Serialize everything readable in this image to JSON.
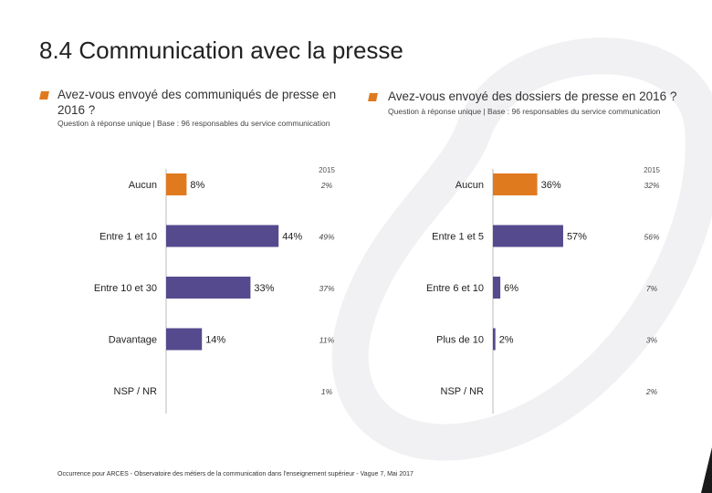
{
  "page": {
    "title": "8.4 Communication avec la presse",
    "footer": "Occurrence pour ARCES - Observatoire des métiers de la communication dans l'enseignement supérieur - Vague 7, Mai 2017"
  },
  "colors": {
    "orange": "#e07a1f",
    "purple": "#554a8e",
    "axis": "#bbbbbb"
  },
  "charts": [
    {
      "question": "Avez-vous envoyé des communiqués de presse en 2016 ?",
      "subtitle": "Question à réponse unique | Base : 96 responsables du service communication"
    },
    {
      "question": "Avez-vous envoyé des dossiers de presse en 2016 ?",
      "subtitle": "Question à réponse unique | Base : 96 responsables du service communication"
    }
  ],
  "chart_data": [
    {
      "type": "bar",
      "orientation": "horizontal",
      "title": "Avez-vous envoyé des communiqués de presse en 2016 ?",
      "categories": [
        "Aucun",
        "Entre 1 et 10",
        "Entre 10 et 30",
        "Davantage",
        "NSP / NR"
      ],
      "values": [
        8,
        44,
        33,
        14,
        null
      ],
      "value_labels": [
        "8%",
        "44%",
        "33%",
        "14%",
        ""
      ],
      "highlight_index": 0,
      "comparison_label": "2015",
      "comparison_values": [
        "2%",
        "49%",
        "37%",
        "11%",
        "1%"
      ],
      "xlim": [
        0,
        60
      ]
    },
    {
      "type": "bar",
      "orientation": "horizontal",
      "title": "Avez-vous envoyé des dossiers de presse en 2016 ?",
      "categories": [
        "Aucun",
        "Entre 1 et 5",
        "Entre 6 et 10",
        "Plus de 10",
        "NSP / NR"
      ],
      "values": [
        36,
        57,
        6,
        2,
        null
      ],
      "value_labels": [
        "36%",
        "57%",
        "6%",
        "2%",
        ""
      ],
      "highlight_index": 0,
      "comparison_label": "2015",
      "comparison_values": [
        "32%",
        "56%",
        "7%",
        "3%",
        "2%"
      ],
      "xlim": [
        0,
        60
      ]
    }
  ]
}
